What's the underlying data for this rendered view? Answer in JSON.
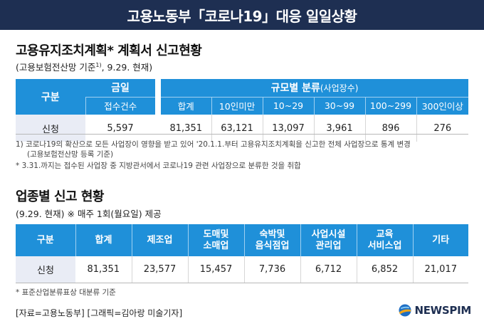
{
  "header": {
    "title": "고용노동부「코로나19」대응 일일상황"
  },
  "section1": {
    "title": "고용유지조치계획* 계획서 신고현황",
    "subtitle_pre": "(고용보험전산망 기준",
    "subtitle_sup": "1)",
    "subtitle_post": ", 9.29. 현재)",
    "table": {
      "gubun": "구분",
      "today_label": "금일",
      "today_sub": "접수건수",
      "scale_label": "규모별 분류",
      "scale_unit": "(사업장수)",
      "columns": [
        "합계",
        "10인미만",
        "10~29",
        "30~99",
        "100~299",
        "300인이상"
      ],
      "row_label": "신청",
      "today_value": "5,597",
      "values": [
        "81,351",
        "63,121",
        "13,097",
        "3,961",
        "896",
        "276"
      ]
    },
    "notes": [
      "1) 코로나19의 확산으로 모든 사업장이 영향을 받고 있어 '20.1.1.부터 고용유지조치계획을 신고한 전체 사업장으로 통계 변경",
      "(고용보험전산망 등록 기준)",
      "* 3.31.까지는 접수된 사업장 중 지방관서에서 코로나19 관련 사업장으로 분류한 것을 취합"
    ]
  },
  "section2": {
    "title": "업종별 신고 현황",
    "subtitle": "(9.29. 현재) ※ 매주 1회(월요일) 제공",
    "table": {
      "gubun": "구분",
      "columns": [
        [
          "합계",
          ""
        ],
        [
          "제조업",
          ""
        ],
        [
          "도매및",
          "소매업"
        ],
        [
          "숙박및",
          "음식점업"
        ],
        [
          "사업시설",
          "관리업"
        ],
        [
          "교육",
          "서비스업"
        ],
        [
          "기타",
          ""
        ]
      ],
      "row_label": "신청",
      "values": [
        "81,351",
        "23,577",
        "15,457",
        "7,736",
        "6,712",
        "6,852",
        "21,017"
      ]
    },
    "note": "* 표준산업분류표상 대분류 기준"
  },
  "footer": {
    "credit": "[자료=고용노동부] [그래픽=김아랑 미술기자]",
    "logo": "NEWSPIM",
    "logo_icon": "newspim-logo-icon",
    "colors": {
      "banner": "#1e2f52",
      "header_blue": "#1f90d9",
      "label_bg": "#e9ecf5"
    }
  }
}
